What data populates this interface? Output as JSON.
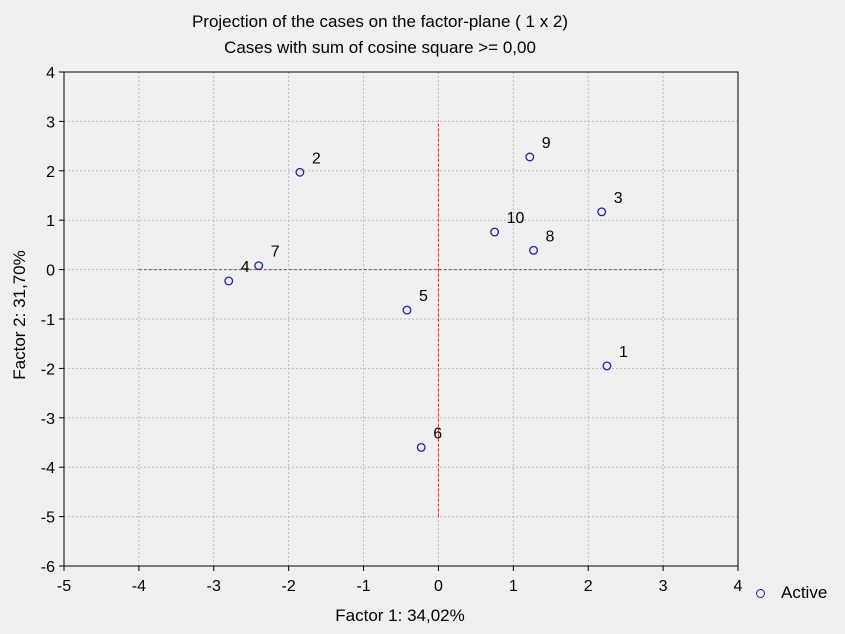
{
  "chart_data": {
    "type": "scatter",
    "title": "Projection of the cases on the factor-plane (  1 x   2)",
    "subtitle": "Cases with sum of cosine square >=  0,00",
    "xlabel": "Factor 1: 34,02%",
    "ylabel": "Factor 2: 31,70%",
    "xlim": [
      -5,
      4
    ],
    "ylim": [
      -6,
      4
    ],
    "xticks": [
      "-5",
      "-4",
      "-3",
      "-2",
      "-1",
      "0",
      "1",
      "2",
      "3",
      "4"
    ],
    "yticks": [
      "4",
      "3",
      "2",
      "1",
      "0",
      "-1",
      "-2",
      "-3",
      "-4",
      "-5",
      "-6"
    ],
    "grid": true,
    "legend_position": "bottom-right",
    "marker_color": "#1f1fa8",
    "reference_line_color": "#cc3333",
    "reference_lines": {
      "horizontal": {
        "y": 0,
        "x_from": -4,
        "x_to": 3
      },
      "vertical": {
        "x": 0,
        "y_from": -5,
        "y_to": 3
      }
    },
    "series": [
      {
        "name": "Active",
        "points": [
          {
            "label": "1",
            "x": 2.25,
            "y": -1.95
          },
          {
            "label": "2",
            "x": -1.85,
            "y": 1.97
          },
          {
            "label": "3",
            "x": 2.18,
            "y": 1.17
          },
          {
            "label": "4",
            "x": -2.8,
            "y": -0.23
          },
          {
            "label": "5",
            "x": -0.42,
            "y": -0.82
          },
          {
            "label": "6",
            "x": -0.23,
            "y": -3.6
          },
          {
            "label": "7",
            "x": -2.4,
            "y": 0.08
          },
          {
            "label": "8",
            "x": 1.27,
            "y": 0.39
          },
          {
            "label": "9",
            "x": 1.22,
            "y": 2.28
          },
          {
            "label": "10",
            "x": 0.75,
            "y": 0.76
          }
        ]
      }
    ]
  }
}
